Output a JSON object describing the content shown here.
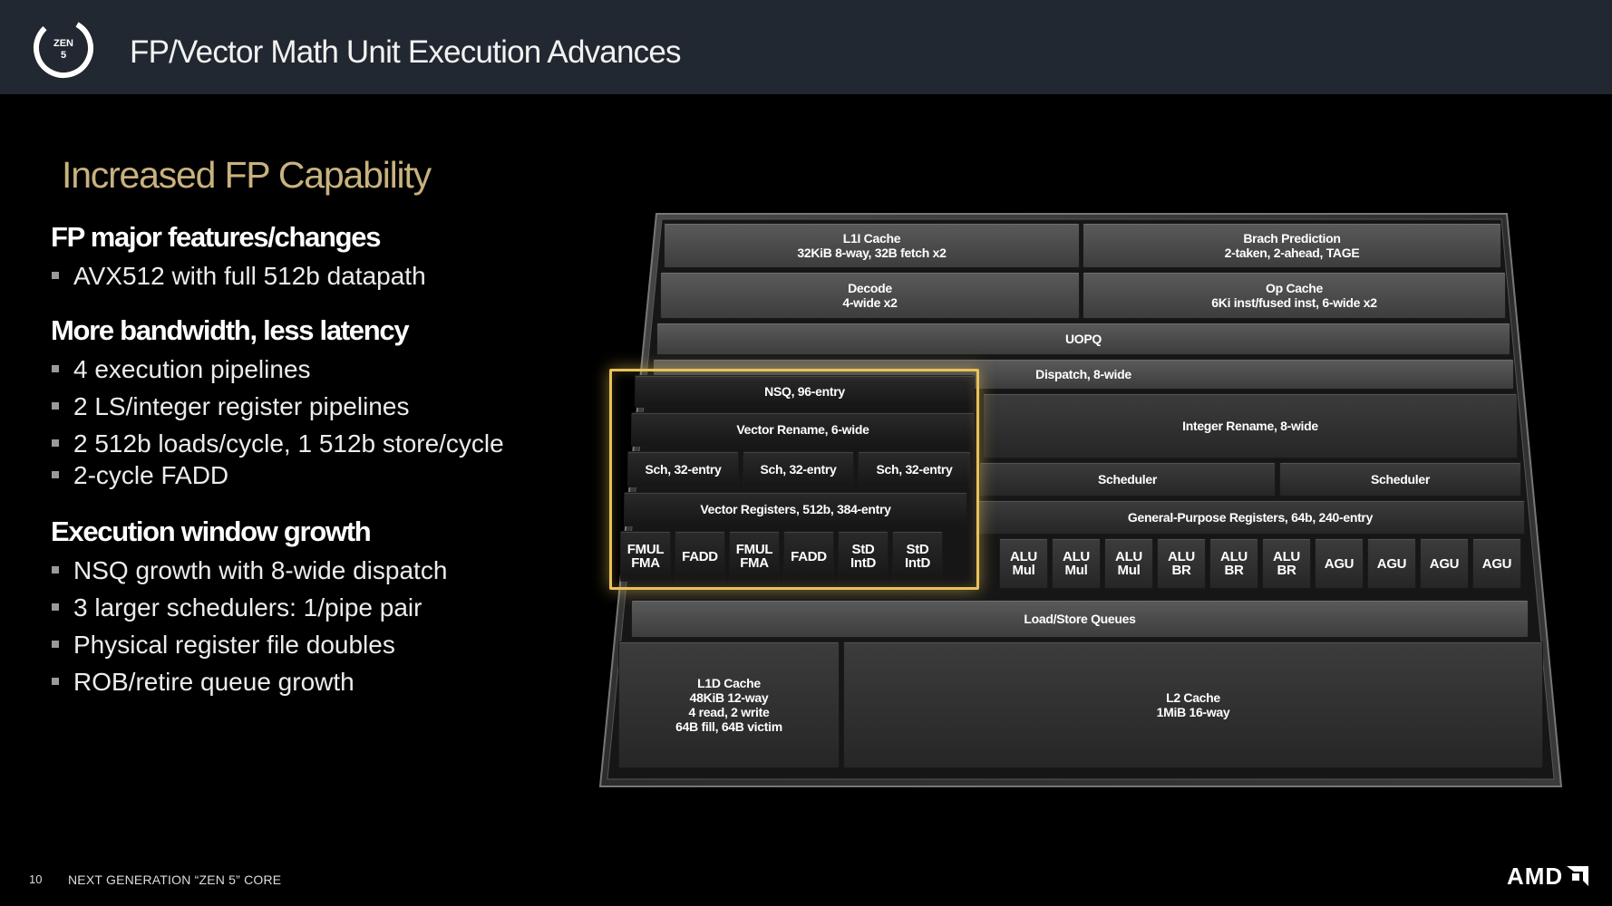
{
  "header": {
    "logo_text": "ZEN 5",
    "title": "FP/Vector Math Unit Execution Advances"
  },
  "content": {
    "section_title": "Increased FP Capability",
    "groups": [
      {
        "heading": "FP major features/changes",
        "bullets": [
          "AVX512 with full 512b datapath"
        ]
      },
      {
        "heading": "More bandwidth, less latency",
        "bullets": [
          "4 execution pipelines",
          "2 LS/integer register pipelines",
          "2 512b loads/cycle, 1 512b store/cycle",
          "2-cycle FADD"
        ]
      },
      {
        "heading": "Execution window growth",
        "bullets": [
          "NSQ growth with 8-wide dispatch",
          "3 larger schedulers: 1/pipe pair",
          "Physical register file doubles",
          "ROB/retire queue growth"
        ]
      }
    ]
  },
  "diagram": {
    "l1i_cache": "L1I Cache\n32KiB 8-way, 32B fetch x2",
    "branch_prediction": "Brach Prediction\n2-taken, 2-ahead, TAGE",
    "decode": "Decode\n4-wide x2",
    "op_cache": "Op Cache\n6Ki inst/fused inst, 6-wide x2",
    "uopq": "UOPQ",
    "dispatch": "Dispatch, 8-wide",
    "nsq": "NSQ, 96-entry",
    "vector_rename": "Vector Rename, 6-wide",
    "integer_rename": "Integer Rename, 8-wide",
    "fp_schedulers": [
      "Sch, 32-entry",
      "Sch, 32-entry",
      "Sch, 32-entry"
    ],
    "int_schedulers": [
      "Scheduler",
      "Scheduler"
    ],
    "vector_registers": "Vector Registers, 512b, 384-entry",
    "gp_registers": "General-Purpose Registers, 64b, 240-entry",
    "fp_units": [
      "FMUL\nFMA",
      "FADD",
      "FMUL\nFMA",
      "FADD",
      "StD\nIntD",
      "StD\nIntD"
    ],
    "int_units": [
      "ALU\nMul",
      "ALU\nMul",
      "ALU\nMul",
      "ALU\nBR",
      "ALU\nBR",
      "ALU\nBR",
      "AGU",
      "AGU",
      "AGU",
      "AGU"
    ],
    "load_store_queues": "Load/Store Queues",
    "l1d_cache": "L1D Cache\n48KiB 12-way\n4 read, 2 write\n64B fill, 64B victim",
    "l2_cache": "L2 Cache\n1MiB 16-way"
  },
  "footer": {
    "page_number": "10",
    "text": "NEXT GENERATION “ZEN 5” CORE",
    "brand": "AMD"
  }
}
